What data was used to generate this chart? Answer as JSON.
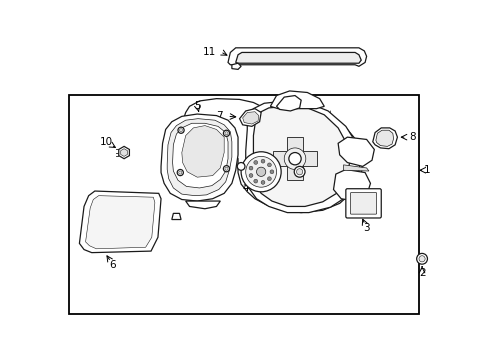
{
  "bg_color": "#ffffff",
  "border_color": "#000000",
  "line_color": "#1a1a1a",
  "text_color": "#000000",
  "fig_width": 4.9,
  "fig_height": 3.6,
  "dpi": 100
}
